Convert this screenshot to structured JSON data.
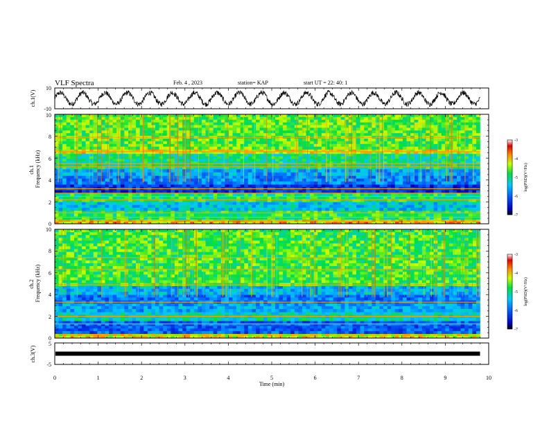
{
  "header": {
    "title": "VLF Spectra",
    "date": "Feb. 4 , 2023",
    "station": "station= KAP",
    "start": "start UT = 22: 40: 1"
  },
  "chart_data": [
    {
      "type": "line",
      "panel": "ch1-waveform",
      "ylabel": "ch.1(V)",
      "ylim": [
        -10,
        10
      ],
      "yticks": [
        "10",
        "-10"
      ],
      "xlim": [
        0,
        10
      ],
      "cycles": 19,
      "duration_min": 9.8,
      "color": "#000000"
    },
    {
      "type": "heatmap",
      "panel": "ch1-spectrogram",
      "ylabel": "ch.1\nFrequency (kHz)",
      "ylim": [
        0,
        10
      ],
      "yticks": [
        "0",
        "2",
        "4",
        "6",
        "8",
        "10"
      ],
      "xlim": [
        0,
        10
      ],
      "duration_min": 9.8,
      "colorbar": {
        "label": "log(PSD)(V²/Hz)",
        "range": [
          -7,
          -3
        ],
        "ticks": [
          "-3",
          "-4",
          "-5",
          "-6",
          "-7"
        ]
      },
      "bands": [
        {
          "from": 0,
          "to": 0.4,
          "level": -4.0
        },
        {
          "from": 0.4,
          "to": 1.2,
          "level": -4.8
        },
        {
          "from": 1.2,
          "to": 2.0,
          "level": -5.4
        },
        {
          "from": 2.0,
          "to": 2.8,
          "level": -4.9
        },
        {
          "from": 2.8,
          "to": 3.6,
          "level": -6.3
        },
        {
          "from": 3.6,
          "to": 4.4,
          "level": -5.8
        },
        {
          "from": 4.4,
          "to": 5.0,
          "level": -5.6
        },
        {
          "from": 5.0,
          "to": 6.4,
          "level": -5.0
        },
        {
          "from": 6.4,
          "to": 6.8,
          "level": -4.2
        },
        {
          "from": 6.8,
          "to": 10,
          "level": -4.6
        }
      ],
      "lines_khz": [
        0.3,
        0.6,
        1.0,
        2.2,
        2.5,
        2.8,
        3.2,
        5.2,
        5.5,
        6.6,
        7.9
      ]
    },
    {
      "type": "heatmap",
      "panel": "ch2-spectrogram",
      "ylabel": "ch.2\nFrequency (kHz)",
      "ylim": [
        0,
        10
      ],
      "yticks": [
        "0",
        "2",
        "4",
        "6",
        "8",
        "10"
      ],
      "xlim": [
        0,
        10
      ],
      "duration_min": 9.8,
      "colorbar": {
        "label": "log(PSD)(V²/Hz)",
        "range": [
          -7,
          -3
        ],
        "ticks": [
          "-3",
          "-4",
          "-5",
          "-6",
          "-7"
        ]
      },
      "bands": [
        {
          "from": 0,
          "to": 0.4,
          "level": -4.2
        },
        {
          "from": 0.4,
          "to": 1.6,
          "level": -6.0
        },
        {
          "from": 1.6,
          "to": 2.4,
          "level": -5.2
        },
        {
          "from": 2.4,
          "to": 3.2,
          "level": -5.6
        },
        {
          "from": 3.2,
          "to": 4.0,
          "level": -5.9
        },
        {
          "from": 4.0,
          "to": 4.8,
          "level": -5.5
        },
        {
          "from": 4.8,
          "to": 10,
          "level": -4.7
        }
      ],
      "lines_khz": [
        0.3,
        1.3,
        2.0,
        3.3,
        4.9,
        6.3,
        7.4
      ]
    },
    {
      "type": "line",
      "panel": "ch3-waveform",
      "ylabel": "ch.3(V)",
      "ylim": [
        -5,
        5
      ],
      "yticks": [
        "5",
        "-5"
      ],
      "xlim": [
        0,
        10
      ],
      "value": 0,
      "duration_min": 9.8,
      "color": "#000000"
    }
  ],
  "x_axis": {
    "label": "Time (min)",
    "ticks": [
      "0",
      "1",
      "2",
      "3",
      "4",
      "5",
      "6",
      "7",
      "8",
      "9",
      "10"
    ]
  }
}
